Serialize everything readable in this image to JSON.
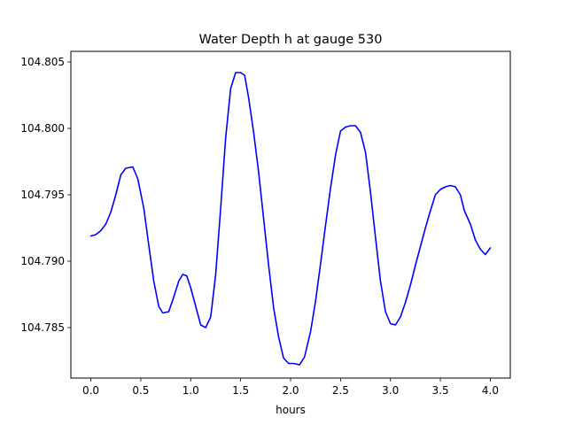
{
  "chart_data": {
    "type": "line",
    "title": "Water Depth h at gauge 530",
    "xlabel": "hours",
    "ylabel": "",
    "xlim": [
      -0.2,
      4.2
    ],
    "ylim": [
      104.7812,
      104.8058
    ],
    "xticks": [
      0.0,
      0.5,
      1.0,
      1.5,
      2.0,
      2.5,
      3.0,
      3.5,
      4.0
    ],
    "xtick_labels": [
      "0.0",
      "0.5",
      "1.0",
      "1.5",
      "2.0",
      "2.5",
      "3.0",
      "3.5",
      "4.0"
    ],
    "yticks": [
      104.785,
      104.79,
      104.795,
      104.8,
      104.805
    ],
    "ytick_labels": [
      "104.785",
      "104.790",
      "104.795",
      "104.800",
      "104.805"
    ],
    "grid": false,
    "legend": "none",
    "line_color": "#0000ff",
    "series": [
      {
        "x": [
          0.0,
          0.05,
          0.1,
          0.15,
          0.2,
          0.25,
          0.3,
          0.35,
          0.42,
          0.47,
          0.53,
          0.58,
          0.63,
          0.68,
          0.72,
          0.78,
          0.83,
          0.88,
          0.92,
          0.96,
          1.0,
          1.05,
          1.1,
          1.15,
          1.2,
          1.25,
          1.3,
          1.35,
          1.4,
          1.45,
          1.5,
          1.54,
          1.58,
          1.63,
          1.68,
          1.73,
          1.78,
          1.83,
          1.88,
          1.93,
          1.98,
          2.03,
          2.09,
          2.14,
          2.2,
          2.25,
          2.3,
          2.35,
          2.4,
          2.45,
          2.5,
          2.55,
          2.6,
          2.65,
          2.7,
          2.75,
          2.8,
          2.85,
          2.9,
          2.95,
          3.0,
          3.05,
          3.1,
          3.15,
          3.2,
          3.25,
          3.3,
          3.35,
          3.4,
          3.45,
          3.5,
          3.55,
          3.6,
          3.65,
          3.7,
          3.74,
          3.8,
          3.85,
          3.9,
          3.95,
          4.0
        ],
        "values": [
          104.7919,
          104.792,
          104.7923,
          104.7928,
          104.7937,
          104.795,
          104.7965,
          104.797,
          104.7971,
          104.7962,
          104.794,
          104.7912,
          104.7885,
          104.7866,
          104.7861,
          104.7862,
          104.7873,
          104.7885,
          104.789,
          104.7889,
          104.788,
          104.7866,
          104.7852,
          104.785,
          104.7858,
          104.789,
          104.794,
          104.7993,
          104.803,
          104.8042,
          104.8042,
          104.804,
          104.8023,
          104.7997,
          104.7967,
          104.7932,
          104.7897,
          104.7865,
          104.7843,
          104.7827,
          104.7823,
          104.7823,
          104.7822,
          104.7828,
          104.7847,
          104.787,
          104.7898,
          104.7927,
          104.7955,
          104.798,
          104.7998,
          104.8001,
          104.8002,
          104.8002,
          104.7997,
          104.7982,
          104.7952,
          104.7918,
          104.7885,
          104.7862,
          104.7853,
          104.7852,
          104.7858,
          104.7869,
          104.7882,
          104.7897,
          104.7911,
          104.7925,
          104.7938,
          104.795,
          104.7954,
          104.7956,
          104.7957,
          104.7956,
          104.795,
          104.7938,
          104.7928,
          104.7916,
          104.7909,
          104.7905,
          104.791
        ]
      }
    ]
  }
}
